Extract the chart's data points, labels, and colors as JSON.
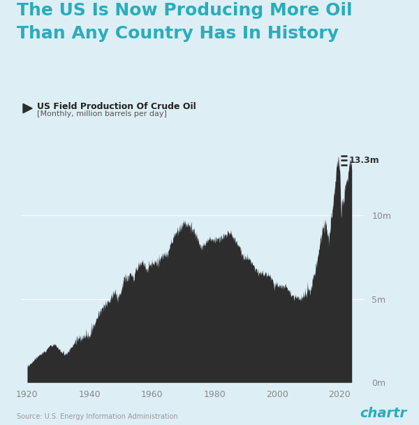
{
  "title_line1": "The US Is Now Producing More Oil",
  "title_line2": "Than Any Country Has In History",
  "title_color": "#2aacbb",
  "bg_color": "#ddeef5",
  "area_color": "#2d2d2d",
  "legend_title": "US Field Production Of Crude Oil",
  "legend_subtitle": "[Monthly, million barrels per day]",
  "source": "Source: U.S. Energy Information Administration",
  "chartr_text": "chartr",
  "chartr_color": "#2aacbb",
  "annotation_value": "13.3m",
  "ytick_labels": [
    "0m",
    "5m",
    "10m"
  ],
  "ytick_values": [
    0,
    5,
    10
  ],
  "xtick_labels": [
    "1920",
    "1940",
    "1960",
    "1980",
    "2000",
    "2020"
  ],
  "xtick_values": [
    1920,
    1940,
    1960,
    1980,
    2000,
    2020
  ],
  "ymax": 14.5,
  "xmin": 1918,
  "xmax": 2028,
  "grid_color": "#c8dde8",
  "tick_color": "#888888"
}
